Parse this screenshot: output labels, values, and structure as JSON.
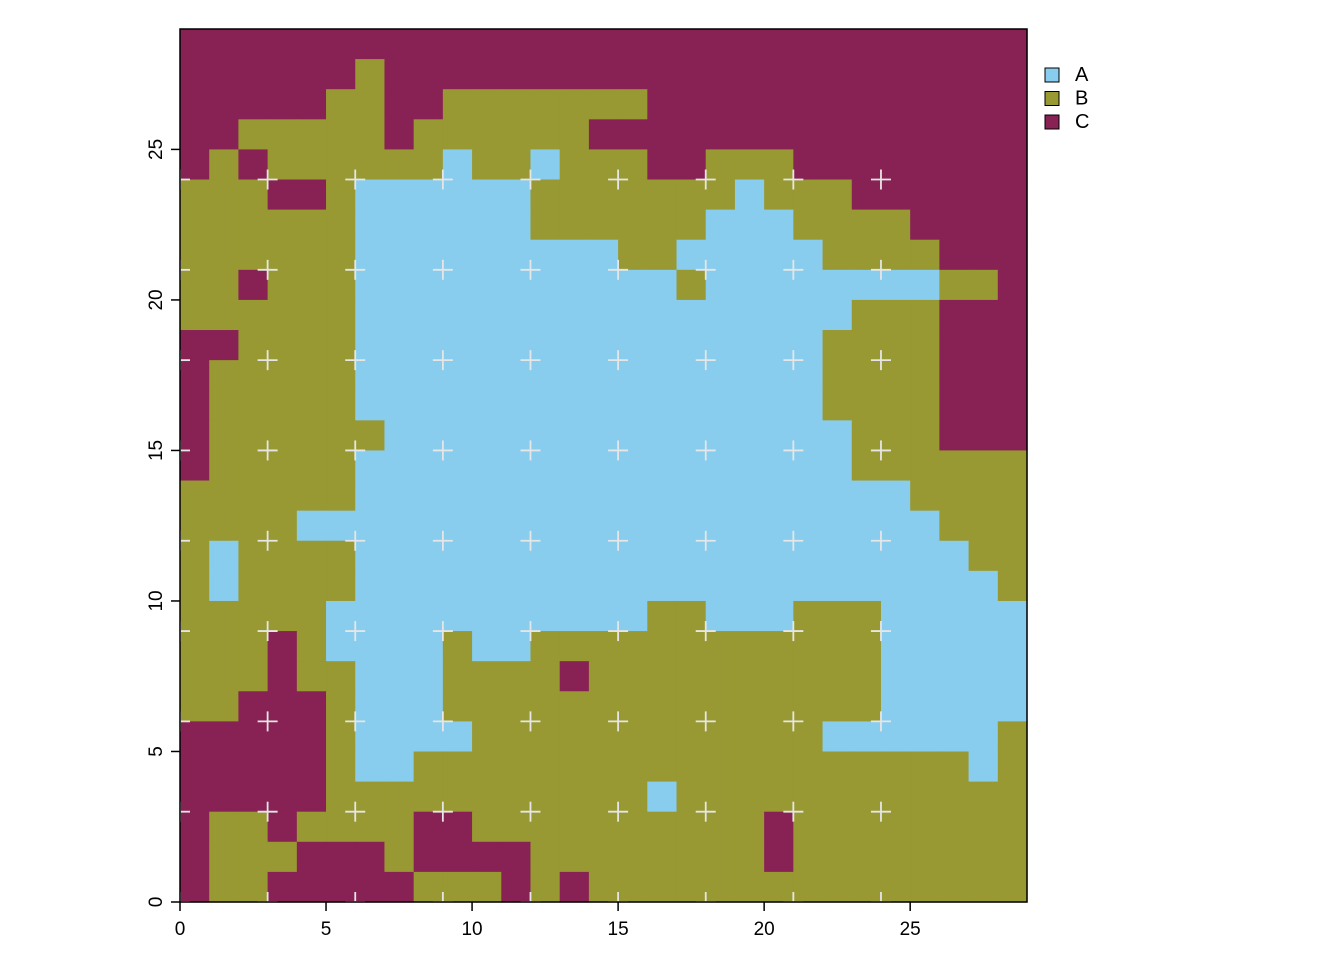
{
  "chart_data": {
    "type": "heatmap",
    "title": "",
    "xlabel": "",
    "ylabel": "",
    "xlim": [
      0,
      29
    ],
    "ylim": [
      0,
      29
    ],
    "x_ticks": [
      "0",
      "5",
      "10",
      "15",
      "20",
      "25"
    ],
    "y_ticks": [
      "0",
      "5",
      "10",
      "15",
      "20",
      "25"
    ],
    "legend": {
      "position": "top-right-outside",
      "entries": [
        {
          "label": "A",
          "color": "#88CCEE"
        },
        {
          "label": "B",
          "color": "#999933"
        },
        {
          "label": "C",
          "color": "#882255"
        }
      ]
    },
    "grid_note": "rows listed from top (y=28) to bottom (y=0), 29 columns each (x=0..28)",
    "rows": [
      "CCCCCCCCCCCCCCCCCCCCCCCCCCCCC",
      "CCCCCCBCCCCCCCCCCCCCCCCCCCCCC",
      "CCCCCBBCCBBBBBBBCCCCCCCCCCCCC",
      "CCBBBBBCBBBBBBCCCCCCCCCCCCCCC",
      "CBCBBBBBBABBABBBCCBBBCCCCCCCC",
      "BBBCCBAAAAAABBBBBBBABBBCCCCCC",
      "BBBBBBAAAAAABBBBBBAAABBBBCCCC",
      "BBBBBBAAAAAAAAABBAAAAABBBBCCC",
      "BBCBBBAAAAAAAAAAABAAAAAAAABBC",
      "BBBBBBAAAAAAAAAAAAAAAAABBBCCC",
      "CCBBBBAAAAAAAAAAAAAAAABBBBCCC",
      "CBBBBBAAAAAAAAAAAAAAAABBBBCCC",
      "CBBBBBAAAAAAAAAAAAAAAABBBBCCC",
      "CBBBBBBAAAAAAAAAAAAAAAABBBCCC",
      "CBBBBBAAAAAAAAAAAAAAAAABBBBBB",
      "BBBBBBAAAAAAAAAAAAAAAAAAABBBB",
      "BBBBAAAAAAAAAAAAAAAAAAAAAABBB",
      "BABBBBAAAAAAAAAAAAAAAAAAAAABB",
      "BABBBBAAAAAAAAAAAAAAAAAAAAAAB",
      "BBBBBAAAAAAAAAAABBAAABBBAAAAA",
      "BBBCBAAAABAABBBBBBBBBBBBAAAAA",
      "BBBCBBAAABBBBCBBBBBBBBBBAAAAA",
      "BBCCCBAAABBBBBBBBBBBBBBBAAAAA",
      "CCCCCBAAAABBBBBBBBBBBBAAAAAAB",
      "CCCCCBAABBBBBBBBBBBBBBBBBBBAB",
      "CCCCCBBBBBBBBBBBABBBBBBBBBBBB",
      "CBBCBBBBCCBBBBBBBBBBCBBBBBBBB",
      "CBBBCCCBCCCCBBBBBBBBCBBBBBBBB",
      "CBBCCCCCBBBCBCBBBBBBBBBBBBBBB"
    ],
    "markers": {
      "symbol": "+",
      "color": "#e6e6e6",
      "x": [
        0,
        3,
        6,
        9,
        12,
        15,
        18,
        21,
        24
      ],
      "y": [
        0,
        3,
        6,
        9,
        12,
        15,
        18,
        21,
        24
      ]
    }
  }
}
